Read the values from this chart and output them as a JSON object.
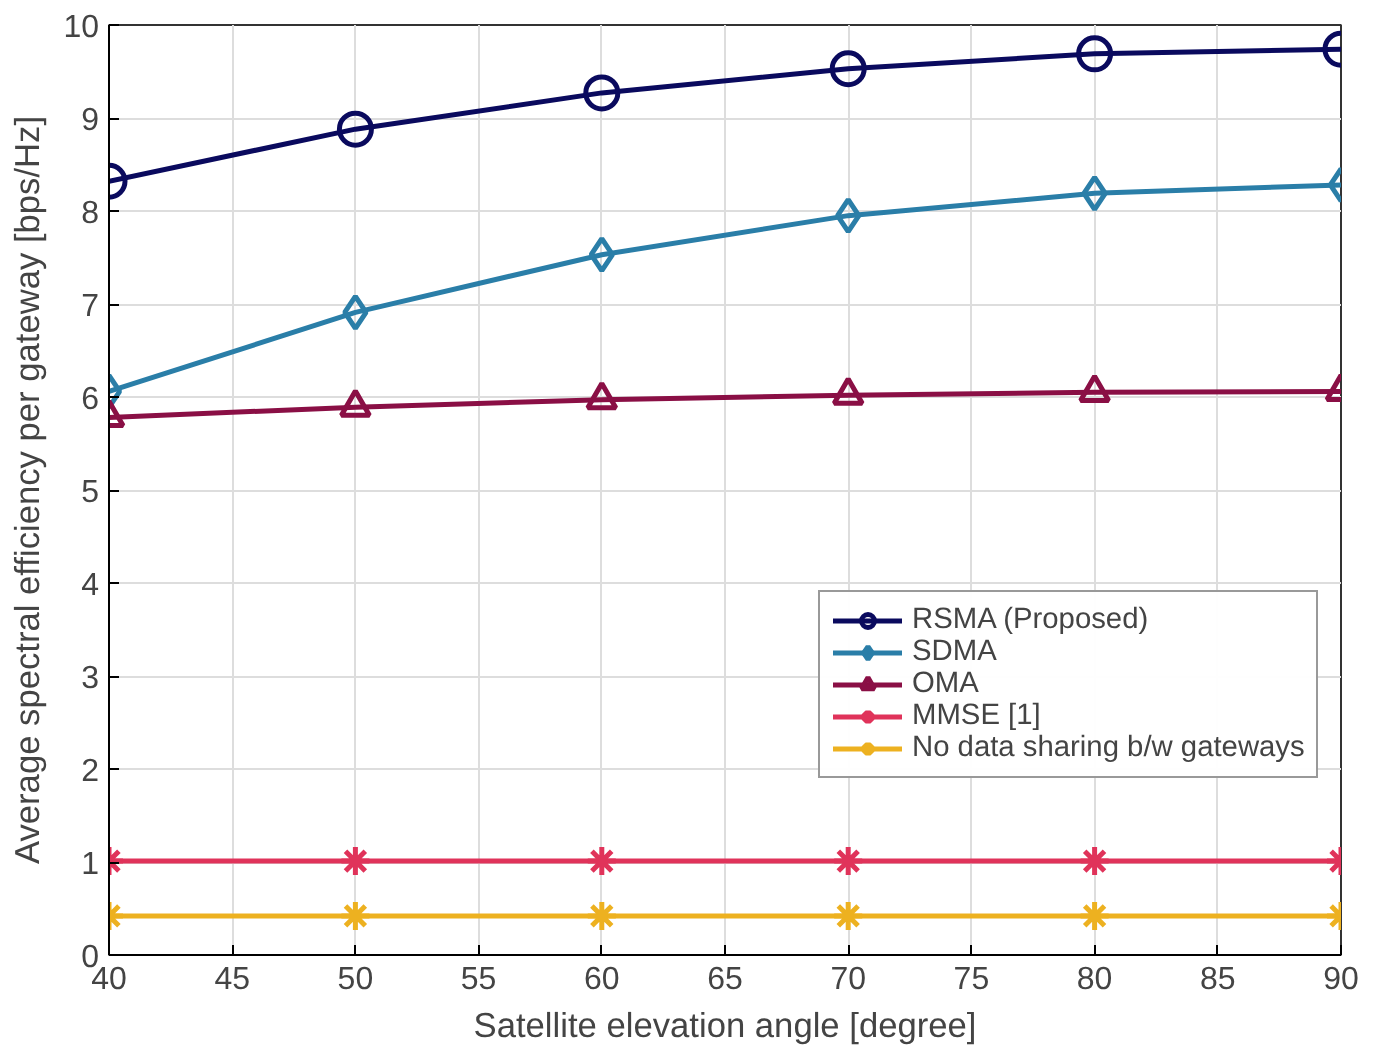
{
  "chart_data": {
    "type": "line",
    "xlabel": "Satellite elevation angle [degree]",
    "ylabel": "Average spectral efficiency per gateway [bps/Hz]",
    "x": [
      40,
      50,
      60,
      70,
      80,
      90
    ],
    "xlim": [
      40,
      90
    ],
    "xticks": [
      40,
      45,
      50,
      55,
      60,
      65,
      70,
      75,
      80,
      85,
      90
    ],
    "ylim": [
      0,
      10
    ],
    "yticks": [
      0,
      1,
      2,
      3,
      4,
      5,
      6,
      7,
      8,
      9,
      10
    ],
    "grid": true,
    "legend": "right",
    "line_style": "solid",
    "series": [
      {
        "name": "RSMA (Proposed)",
        "color": "#0a0a5e",
        "marker": "circle",
        "values": [
          8.32,
          8.88,
          9.27,
          9.53,
          9.69,
          9.74
        ]
      },
      {
        "name": "SDMA",
        "color": "#2a7ea8",
        "marker": "diamond",
        "values": [
          6.06,
          6.91,
          7.53,
          7.95,
          8.19,
          8.28
        ]
      },
      {
        "name": "OMA",
        "color": "#8a0f45",
        "marker": "triangle",
        "values": [
          5.78,
          5.89,
          5.97,
          6.02,
          6.05,
          6.06
        ]
      },
      {
        "name": "MMSE [1]",
        "color": "#e0335a",
        "marker": "cross",
        "values": [
          1.01,
          1.01,
          1.01,
          1.01,
          1.01,
          1.01
        ]
      },
      {
        "name": "No data sharing b/w gateways",
        "color": "#edb120",
        "marker": "cross",
        "values": [
          0.42,
          0.42,
          0.42,
          0.42,
          0.42,
          0.42
        ]
      }
    ]
  }
}
